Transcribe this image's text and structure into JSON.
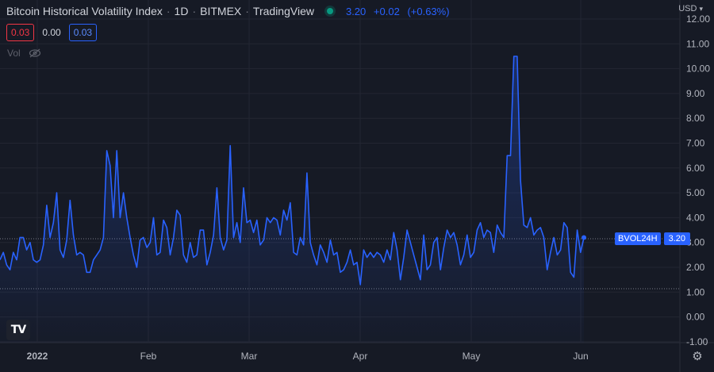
{
  "header": {
    "title": "Bitcoin Historical Volatility Index",
    "interval": "1D",
    "exchange": "BITMEX",
    "source": "TradingView",
    "status_color": "#089981",
    "last_price": "3.20",
    "change": "+0.02",
    "change_pct": "(+0.63%)"
  },
  "indicators": {
    "box_left": "0.03",
    "middle": "0.00",
    "box_right": "0.03",
    "vol_label": "Vol",
    "vol_icon": "eye-hidden-icon"
  },
  "currency": {
    "label": "USD"
  },
  "price_label": {
    "symbol": "BVOL24H",
    "value": "3.20"
  },
  "settings_icon": "gear-icon",
  "logo_icon": "tradingview-logo",
  "colors": {
    "line": "#2962ff",
    "background": "#161a25",
    "grid": "#232632",
    "axis_text": "#b2b5be"
  },
  "chart_data": {
    "type": "area",
    "title": "Bitcoin Historical Volatility Index",
    "series": [
      {
        "name": "BVOL24H",
        "values": [
          2.3,
          2.6,
          2.1,
          1.9,
          2.6,
          2.3,
          3.2,
          3.2,
          2.7,
          3.0,
          2.3,
          2.2,
          2.3,
          2.9,
          4.5,
          3.2,
          3.8,
          5.0,
          2.7,
          2.4,
          3.1,
          4.7,
          3.3,
          2.5,
          2.6,
          2.5,
          1.8,
          1.8,
          2.3,
          2.5,
          2.7,
          3.2,
          6.7,
          6.1,
          4.0,
          6.7,
          4.0,
          5.0,
          4.0,
          3.2,
          2.5,
          2.0,
          3.1,
          3.2,
          2.8,
          3.0,
          4.0,
          2.5,
          2.6,
          3.9,
          3.6,
          2.5,
          3.2,
          4.3,
          4.1,
          2.5,
          2.2,
          3.0,
          2.4,
          2.5,
          3.5,
          3.5,
          2.1,
          2.6,
          3.3,
          5.2,
          3.2,
          2.7,
          3.1,
          6.9,
          3.2,
          3.8,
          3.0,
          5.2,
          3.8,
          3.9,
          3.4,
          3.9,
          2.9,
          3.1,
          4.0,
          3.8,
          4.0,
          3.9,
          3.3,
          4.3,
          3.9,
          4.6,
          2.6,
          2.5,
          3.2,
          2.9,
          5.8,
          3.0,
          2.5,
          2.1,
          2.9,
          2.6,
          2.2,
          3.1,
          2.5,
          2.6,
          1.8,
          1.9,
          2.2,
          2.7,
          2.1,
          2.2,
          1.3,
          2.7,
          2.4,
          2.6,
          2.4,
          2.6,
          2.5,
          2.2,
          2.7,
          2.3,
          3.4,
          2.7,
          1.5,
          2.4,
          3.5,
          3.0,
          2.5,
          2.0,
          1.5,
          3.3,
          1.9,
          2.1,
          3.0,
          3.2,
          1.9,
          2.8,
          3.5,
          3.2,
          3.4,
          2.9,
          2.1,
          2.5,
          3.3,
          2.4,
          2.6,
          3.5,
          3.8,
          3.2,
          3.5,
          3.4,
          2.6,
          3.7,
          3.4,
          3.2,
          6.5,
          6.5,
          10.5,
          10.5,
          5.5,
          3.7,
          3.6,
          4.0,
          3.3,
          3.5,
          3.6,
          3.2,
          1.9,
          2.6,
          3.2,
          2.5,
          2.7,
          3.8,
          3.6,
          1.8,
          1.6,
          3.5,
          2.6,
          3.2
        ],
        "last_value": 3.2
      }
    ],
    "x_ticks": [
      "2022",
      "Feb",
      "Mar",
      "Apr",
      "May",
      "Jun"
    ],
    "y_ticks": [
      "12.00",
      "11.00",
      "10.00",
      "9.00",
      "8.00",
      "7.00",
      "6.00",
      "5.00",
      "4.00",
      "3.00",
      "2.00",
      "1.00",
      "0.00",
      "-1.00"
    ],
    "ylim": [
      -1.1,
      12.2
    ],
    "ylabel": "USD",
    "grid": true
  }
}
